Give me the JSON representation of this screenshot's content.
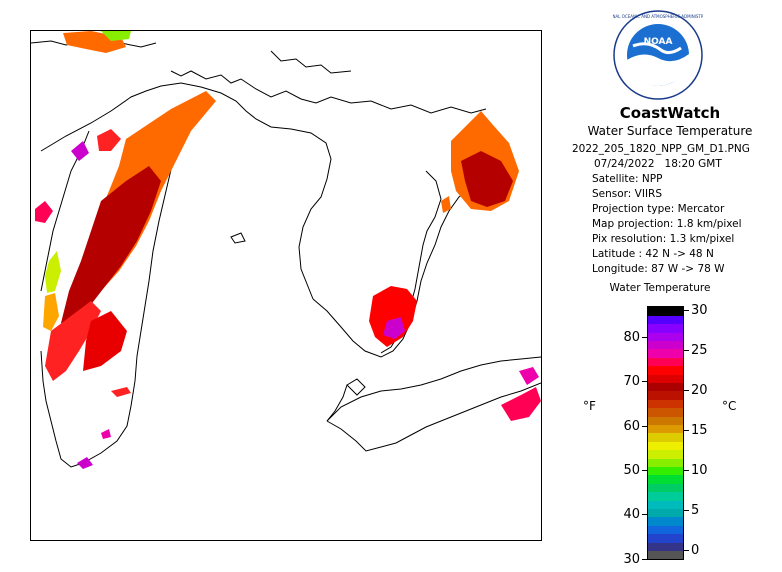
{
  "header": {
    "logo_text": "NOAA",
    "title": "CoastWatch",
    "subtitle": "Water Surface Temperature"
  },
  "meta": {
    "filename": "2022_205_1820_NPP_GM_D1.PNG",
    "date": "07/24/2022",
    "time": "18:20 GMT",
    "satellite": "Satellite: NPP",
    "sensor": "Sensor: VIIRS",
    "projection": "Projection type:  Mercator",
    "map_projection": "Map projection: 1.8 km/pixel",
    "pix_resolution": "Pix resolution: 1.3 km/pixel",
    "latitude": "Latitude : 42 N -> 48 N",
    "longitude": "Longitude: 87 W -> 78 W"
  },
  "legend": {
    "title": "Water Temperature",
    "unit_f": "°F",
    "unit_c": "°C",
    "fahrenheit_ticks": [
      "30",
      "40",
      "50",
      "60",
      "70",
      "80"
    ],
    "celsius_ticks": [
      "0",
      "5",
      "10",
      "15",
      "20",
      "25",
      "30"
    ],
    "colors": [
      "#555555",
      "#333388",
      "#2244cc",
      "#1166dd",
      "#0088cc",
      "#00aaaa",
      "#00bbbb",
      "#00cc99",
      "#00cc66",
      "#00dd33",
      "#33ee00",
      "#88ee00",
      "#ccee00",
      "#eeee00",
      "#ddcc00",
      "#dd9900",
      "#cc7700",
      "#cc5500",
      "#cc3300",
      "#bb1100",
      "#aa0000",
      "#dd0000",
      "#ff0000",
      "#ff0055",
      "#ee00aa",
      "#cc00cc",
      "#aa00ee",
      "#8800ff",
      "#5500ff",
      "#000000"
    ]
  }
}
